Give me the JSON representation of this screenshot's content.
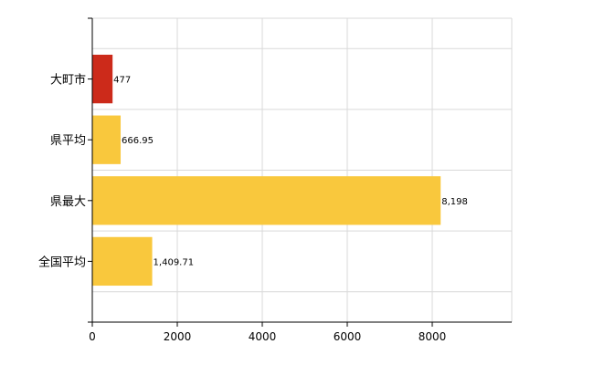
{
  "chart_data": {
    "type": "bar",
    "orientation": "horizontal",
    "categories": [
      "大町市",
      "県平均",
      "県最大",
      "全国平均"
    ],
    "values": [
      477,
      666.95,
      8198,
      1409.71
    ],
    "value_labels": [
      "477",
      "666.95",
      "8,198",
      "1,409.71"
    ],
    "bar_colors": [
      "#cc2a1a",
      "#f9c83d",
      "#f9c83d",
      "#f9c83d"
    ],
    "xlim": [
      0,
      10000
    ],
    "xticks": [
      0,
      2000,
      4000,
      6000,
      8000
    ],
    "xtick_labels": [
      "0",
      "2000",
      "4000",
      "6000",
      "8000"
    ],
    "grid": true,
    "legend": "none",
    "title": "",
    "xlabel": "",
    "ylabel": ""
  }
}
